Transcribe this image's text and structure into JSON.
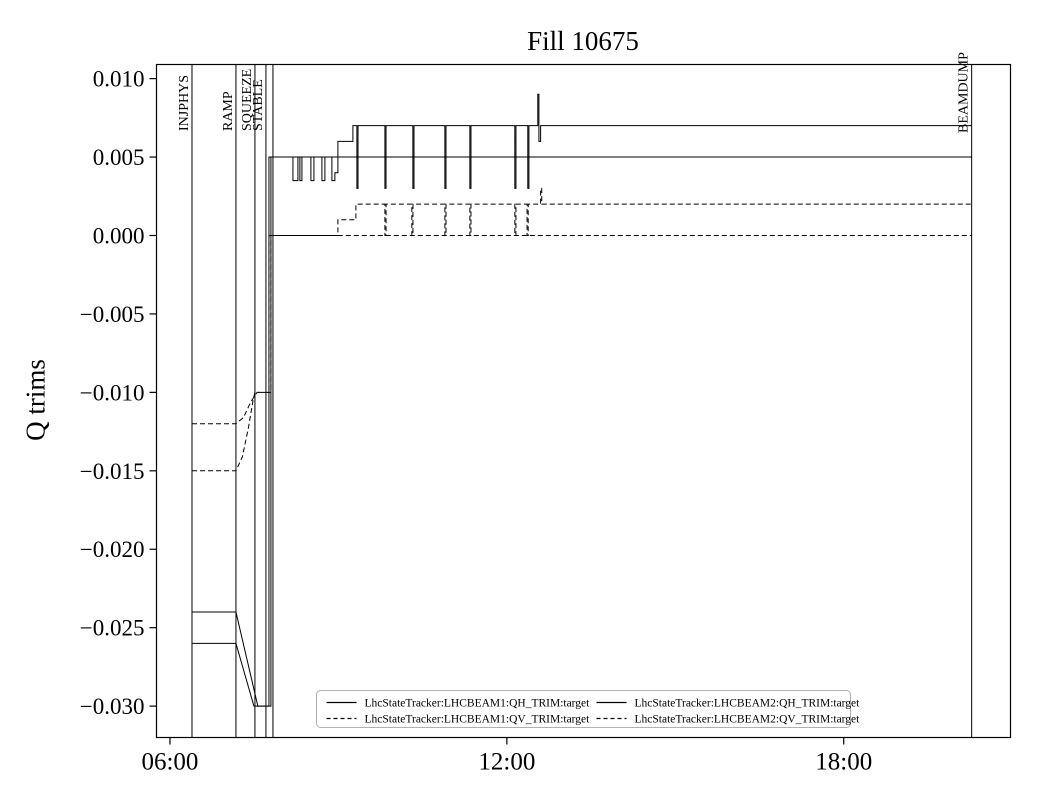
{
  "chart_data": {
    "type": "line",
    "title": "Fill 10675",
    "xlabel": "",
    "ylabel": "Q trims",
    "grid": false,
    "x_axis": {
      "unit": "time",
      "range_hours": [
        5.76,
        20.97
      ],
      "tick_hours": [
        6,
        12,
        18
      ],
      "tick_labels": [
        "06:00",
        "12:00",
        "18:00"
      ]
    },
    "y_axis": {
      "range": [
        -0.032,
        0.0109
      ],
      "ticks": [
        0.01,
        0.005,
        0.0,
        -0.005,
        -0.01,
        -0.015,
        -0.02,
        -0.025,
        -0.03
      ],
      "tick_labels": [
        "0.010",
        "0.005",
        "0.000",
        "−0.005",
        "−0.010",
        "−0.015",
        "−0.020",
        "−0.025",
        "−0.030"
      ]
    },
    "state_lines": [
      {
        "label": "INJPHYS",
        "hour": 6.392
      },
      {
        "label": "RAMP",
        "hour": 7.175
      },
      {
        "label": "SQUEEZE",
        "hour": 7.513
      },
      {
        "label": "STABLE",
        "hour": 7.709
      },
      {
        "label": "",
        "hour": 7.834
      },
      {
        "label": "BEAMDUMP",
        "hour": 20.278
      }
    ],
    "legend": {
      "position": "lower center",
      "columns": 2,
      "border_color": "#b0b0b0"
    },
    "line_color": "#000000",
    "series": [
      {
        "name": "LhcStateTracker:LHCBEAM1:QH_TRIM:target",
        "style": "solid",
        "points": [
          [
            6.392,
            -0.024
          ],
          [
            7.175,
            -0.024
          ],
          [
            7.565,
            -0.03
          ],
          [
            7.763,
            -0.03
          ],
          [
            7.763,
            0.005
          ],
          [
            20.278,
            0.005
          ]
        ]
      },
      {
        "name": "LhcStateTracker:LHCBEAM1:QV_TRIM:target",
        "style": "dashed",
        "points": [
          [
            6.392,
            -0.012
          ],
          [
            7.175,
            -0.012
          ],
          [
            7.31,
            -0.0116
          ],
          [
            7.44,
            -0.0106
          ],
          [
            7.55,
            -0.01
          ],
          [
            7.763,
            -0.01
          ],
          [
            7.763,
            0.0
          ],
          [
            20.278,
            0.0
          ]
        ]
      },
      {
        "name": "LhcStateTracker:LHCBEAM2:QH_TRIM:target",
        "style": "solid",
        "points": [
          [
            6.392,
            -0.026
          ],
          [
            7.175,
            -0.026
          ],
          [
            7.495,
            -0.03
          ],
          [
            7.798,
            -0.03
          ],
          [
            7.798,
            0.005
          ],
          [
            8.19,
            0.005
          ],
          [
            8.19,
            0.0035
          ],
          [
            8.279,
            0.0035
          ],
          [
            8.279,
            0.005
          ],
          [
            8.314,
            0.005
          ],
          [
            8.314,
            0.0035
          ],
          [
            8.35,
            0.0035
          ],
          [
            8.35,
            0.005
          ],
          [
            8.51,
            0.005
          ],
          [
            8.51,
            0.0035
          ],
          [
            8.564,
            0.0035
          ],
          [
            8.564,
            0.005
          ],
          [
            8.706,
            0.005
          ],
          [
            8.706,
            0.0035
          ],
          [
            8.759,
            0.0035
          ],
          [
            8.759,
            0.005
          ],
          [
            8.884,
            0.005
          ],
          [
            8.884,
            0.0035
          ],
          [
            8.937,
            0.0035
          ],
          [
            8.937,
            0.004
          ],
          [
            8.991,
            0.004
          ],
          [
            8.991,
            0.006
          ],
          [
            9.258,
            0.006
          ],
          [
            9.258,
            0.007
          ],
          [
            9.329,
            0.007
          ],
          [
            9.329,
            0.003
          ],
          [
            9.349,
            0.003
          ],
          [
            9.349,
            0.007
          ],
          [
            9.828,
            0.007
          ],
          [
            9.828,
            0.003
          ],
          [
            9.848,
            0.003
          ],
          [
            9.848,
            0.007
          ],
          [
            10.326,
            0.007
          ],
          [
            10.326,
            0.003
          ],
          [
            10.346,
            0.003
          ],
          [
            10.346,
            0.007
          ],
          [
            10.896,
            0.007
          ],
          [
            10.896,
            0.003
          ],
          [
            10.916,
            0.003
          ],
          [
            10.916,
            0.007
          ],
          [
            11.341,
            0.007
          ],
          [
            11.341,
            0.003
          ],
          [
            11.361,
            0.003
          ],
          [
            11.361,
            0.007
          ],
          [
            12.142,
            0.007
          ],
          [
            12.142,
            0.003
          ],
          [
            12.162,
            0.003
          ],
          [
            12.162,
            0.007
          ],
          [
            12.373,
            0.007
          ],
          [
            12.373,
            0.003
          ],
          [
            12.393,
            0.003
          ],
          [
            12.393,
            0.007
          ],
          [
            12.551,
            0.007
          ],
          [
            12.551,
            0.009
          ],
          [
            12.571,
            0.009
          ],
          [
            12.571,
            0.006
          ],
          [
            12.601,
            0.006
          ],
          [
            12.601,
            0.007
          ],
          [
            20.278,
            0.007
          ]
        ]
      },
      {
        "name": "LhcStateTracker:LHCBEAM2:QV_TRIM:target",
        "style": "dashed",
        "points": [
          [
            6.392,
            -0.015
          ],
          [
            7.175,
            -0.015
          ],
          [
            7.29,
            -0.0141
          ],
          [
            7.4,
            -0.0122
          ],
          [
            7.48,
            -0.0105
          ],
          [
            7.513,
            -0.01
          ],
          [
            7.798,
            -0.01
          ],
          [
            7.798,
            0.0
          ],
          [
            8.991,
            0.0
          ],
          [
            8.991,
            0.001
          ],
          [
            9.311,
            0.001
          ],
          [
            9.311,
            0.002
          ],
          [
            9.828,
            0.002
          ],
          [
            9.828,
            0.0
          ],
          [
            9.848,
            0.0
          ],
          [
            9.848,
            0.002
          ],
          [
            10.308,
            0.002
          ],
          [
            10.308,
            0.0
          ],
          [
            10.328,
            0.0
          ],
          [
            10.328,
            0.002
          ],
          [
            10.896,
            0.002
          ],
          [
            10.896,
            0.0
          ],
          [
            10.916,
            0.0
          ],
          [
            10.916,
            0.002
          ],
          [
            11.341,
            0.002
          ],
          [
            11.341,
            0.0
          ],
          [
            11.361,
            0.0
          ],
          [
            11.361,
            0.002
          ],
          [
            12.142,
            0.002
          ],
          [
            12.142,
            0.0
          ],
          [
            12.162,
            0.0
          ],
          [
            12.162,
            0.002
          ],
          [
            12.36,
            0.002
          ],
          [
            12.36,
            0.0
          ],
          [
            12.38,
            0.0
          ],
          [
            12.38,
            0.002
          ],
          [
            12.601,
            0.002
          ],
          [
            12.601,
            0.003
          ],
          [
            12.621,
            0.003
          ],
          [
            12.621,
            0.002
          ],
          [
            20.278,
            0.002
          ]
        ]
      }
    ]
  }
}
